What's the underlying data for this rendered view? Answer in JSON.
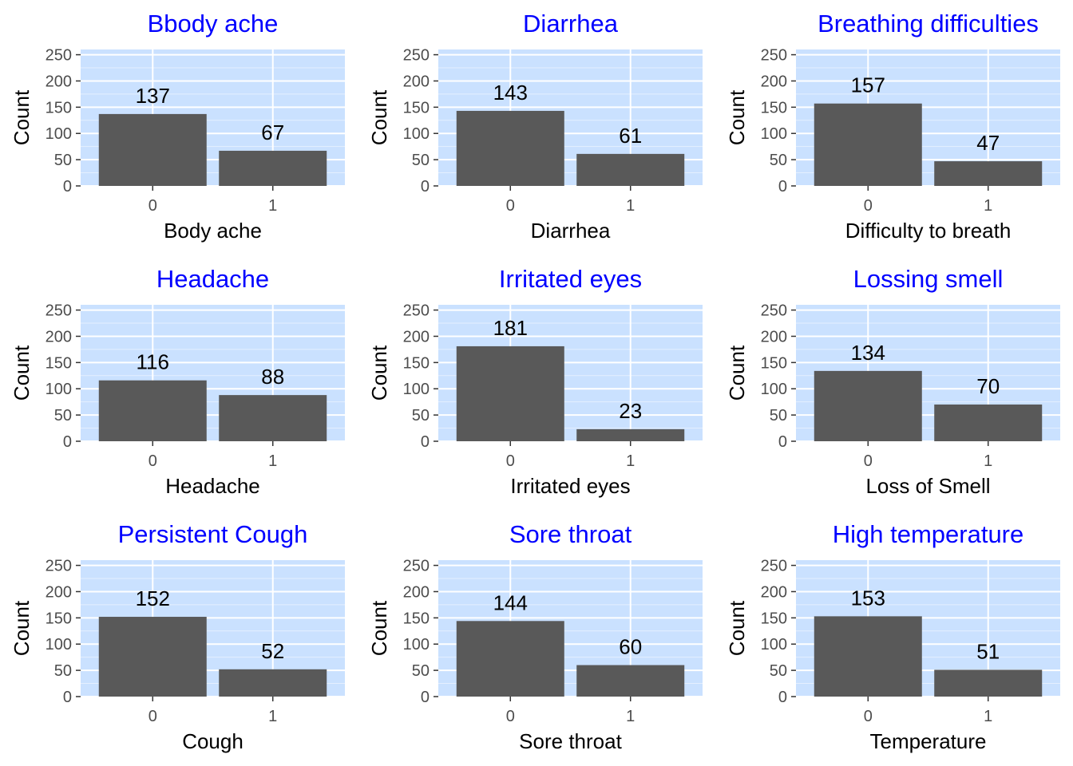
{
  "colors": {
    "panel_background": "#cae1ff",
    "grid_major": "#ffffff",
    "grid_minor": "#e4efff",
    "bar_fill": "#595959",
    "title": "#0000ff",
    "tick_label": "#4d4d4d",
    "tick_mark": "#333333",
    "text": "#000000"
  },
  "chart_data": [
    {
      "type": "bar",
      "title": "Bbody ache",
      "xlabel": "Body ache",
      "ylabel": "Count",
      "categories": [
        "0",
        "1"
      ],
      "values": [
        137,
        67
      ],
      "data_labels": [
        "137",
        "67"
      ],
      "ylim": [
        0,
        260
      ],
      "yticks": [
        "0",
        "50",
        "100",
        "150",
        "200",
        "250"
      ],
      "grid": true
    },
    {
      "type": "bar",
      "title": "Diarrhea",
      "xlabel": "Diarrhea",
      "ylabel": "Count",
      "categories": [
        "0",
        "1"
      ],
      "values": [
        143,
        61
      ],
      "data_labels": [
        "143",
        "61"
      ],
      "ylim": [
        0,
        260
      ],
      "yticks": [
        "0",
        "50",
        "100",
        "150",
        "200",
        "250"
      ],
      "grid": true
    },
    {
      "type": "bar",
      "title": "Breathing difficulties",
      "xlabel": "Difficulty to breath",
      "ylabel": "Count",
      "categories": [
        "0",
        "1"
      ],
      "values": [
        157,
        47
      ],
      "data_labels": [
        "157",
        "47"
      ],
      "ylim": [
        0,
        260
      ],
      "yticks": [
        "0",
        "50",
        "100",
        "150",
        "200",
        "250"
      ],
      "grid": true
    },
    {
      "type": "bar",
      "title": "Headache",
      "xlabel": "Headache",
      "ylabel": "Count",
      "categories": [
        "0",
        "1"
      ],
      "values": [
        116,
        88
      ],
      "data_labels": [
        "116",
        "88"
      ],
      "ylim": [
        0,
        260
      ],
      "yticks": [
        "0",
        "50",
        "100",
        "150",
        "200",
        "250"
      ],
      "grid": true
    },
    {
      "type": "bar",
      "title": "Irritated eyes",
      "xlabel": "Irritated eyes",
      "ylabel": "Count",
      "categories": [
        "0",
        "1"
      ],
      "values": [
        181,
        23
      ],
      "data_labels": [
        "181",
        "23"
      ],
      "ylim": [
        0,
        260
      ],
      "yticks": [
        "0",
        "50",
        "100",
        "150",
        "200",
        "250"
      ],
      "grid": true
    },
    {
      "type": "bar",
      "title": "Lossing smell",
      "xlabel": "Loss of Smell",
      "ylabel": "Count",
      "categories": [
        "0",
        "1"
      ],
      "values": [
        134,
        70
      ],
      "data_labels": [
        "134",
        "70"
      ],
      "ylim": [
        0,
        260
      ],
      "yticks": [
        "0",
        "50",
        "100",
        "150",
        "200",
        "250"
      ],
      "grid": true
    },
    {
      "type": "bar",
      "title": "Persistent Cough",
      "xlabel": "Cough",
      "ylabel": "Count",
      "categories": [
        "0",
        "1"
      ],
      "values": [
        152,
        52
      ],
      "data_labels": [
        "152",
        "52"
      ],
      "ylim": [
        0,
        260
      ],
      "yticks": [
        "0",
        "50",
        "100",
        "150",
        "200",
        "250"
      ],
      "grid": true
    },
    {
      "type": "bar",
      "title": "Sore throat",
      "xlabel": "Sore throat",
      "ylabel": "Count",
      "categories": [
        "0",
        "1"
      ],
      "values": [
        144,
        60
      ],
      "data_labels": [
        "144",
        "60"
      ],
      "ylim": [
        0,
        260
      ],
      "yticks": [
        "0",
        "50",
        "100",
        "150",
        "200",
        "250"
      ],
      "grid": true
    },
    {
      "type": "bar",
      "title": "High temperature",
      "xlabel": "Temperature",
      "ylabel": "Count",
      "categories": [
        "0",
        "1"
      ],
      "values": [
        153,
        51
      ],
      "data_labels": [
        "153",
        "51"
      ],
      "ylim": [
        0,
        260
      ],
      "yticks": [
        "0",
        "50",
        "100",
        "150",
        "200",
        "250"
      ],
      "grid": true
    }
  ]
}
